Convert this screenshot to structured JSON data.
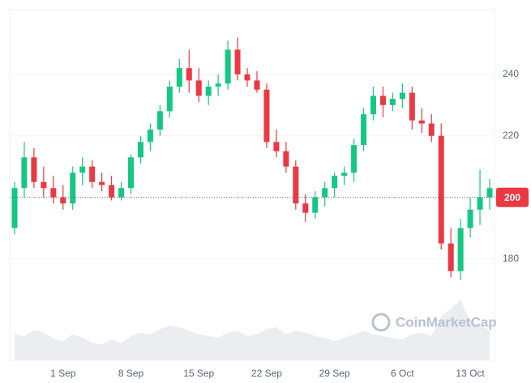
{
  "chart_data": {
    "type": "candlestick",
    "watermark": "CoinMarketCap",
    "categories": [
      null,
      null,
      null,
      null,
      null,
      "1 Sep",
      null,
      null,
      null,
      null,
      null,
      null,
      "8 Sep",
      null,
      null,
      null,
      null,
      null,
      null,
      "15 Sep",
      null,
      null,
      null,
      null,
      null,
      null,
      "22 Sep",
      null,
      null,
      null,
      null,
      null,
      null,
      "29 Sep",
      null,
      null,
      null,
      null,
      null,
      null,
      "6 Oct",
      null,
      null,
      null,
      null,
      null,
      null,
      "13 Oct",
      null,
      null
    ],
    "open": [
      190,
      203,
      213,
      205,
      203,
      200,
      198,
      208,
      210,
      205,
      204,
      200,
      203,
      213,
      218,
      222,
      228,
      236,
      242,
      238,
      233,
      236,
      237,
      248,
      240,
      238,
      235,
      218,
      215,
      210,
      198,
      195,
      200,
      203,
      207,
      208,
      217,
      227,
      233,
      230,
      232,
      234,
      225,
      224,
      220,
      185,
      176,
      190,
      196,
      200
    ],
    "high": [
      205,
      218,
      216,
      210,
      207,
      204,
      210,
      213,
      212,
      208,
      207,
      205,
      214,
      220,
      224,
      230,
      238,
      245,
      248,
      242,
      238,
      240,
      251,
      252,
      242,
      241,
      237,
      222,
      218,
      212,
      201,
      202,
      205,
      208,
      210,
      219,
      229,
      236,
      236,
      234,
      237,
      236,
      229,
      227,
      224,
      190,
      193,
      200,
      209,
      206
    ],
    "low": [
      188,
      200,
      203,
      200,
      198,
      196,
      196,
      204,
      203,
      202,
      199,
      199,
      201,
      211,
      215,
      220,
      226,
      234,
      234,
      231,
      230,
      233,
      235,
      238,
      236,
      234,
      216,
      213,
      208,
      196,
      192,
      193,
      197,
      200,
      204,
      205,
      215,
      225,
      226,
      228,
      229,
      222,
      221,
      218,
      183,
      174,
      173,
      187,
      191,
      196
    ],
    "close": [
      203,
      213,
      205,
      203,
      200,
      198,
      208,
      210,
      205,
      204,
      200,
      203,
      213,
      218,
      222,
      228,
      236,
      242,
      238,
      233,
      236,
      237,
      248,
      240,
      238,
      235,
      218,
      215,
      210,
      198,
      195,
      200,
      203,
      207,
      208,
      217,
      227,
      233,
      230,
      232,
      234,
      225,
      224,
      220,
      185,
      176,
      190,
      196,
      200,
      203
    ],
    "volume": [
      30,
      28,
      35,
      32,
      25,
      22,
      30,
      26,
      20,
      18,
      24,
      20,
      28,
      32,
      30,
      36,
      40,
      38,
      34,
      30,
      28,
      26,
      32,
      34,
      28,
      30,
      36,
      38,
      30,
      34,
      32,
      28,
      26,
      22,
      26,
      30,
      34,
      30,
      28,
      26,
      24,
      30,
      32,
      28,
      50,
      60,
      70,
      45,
      40,
      35
    ],
    "up_color": "#16c784",
    "down_color": "#ea3943",
    "ylim": [
      147,
      261
    ],
    "yticks": [
      180,
      200,
      220,
      240
    ],
    "grid": true,
    "current_price": 200
  }
}
